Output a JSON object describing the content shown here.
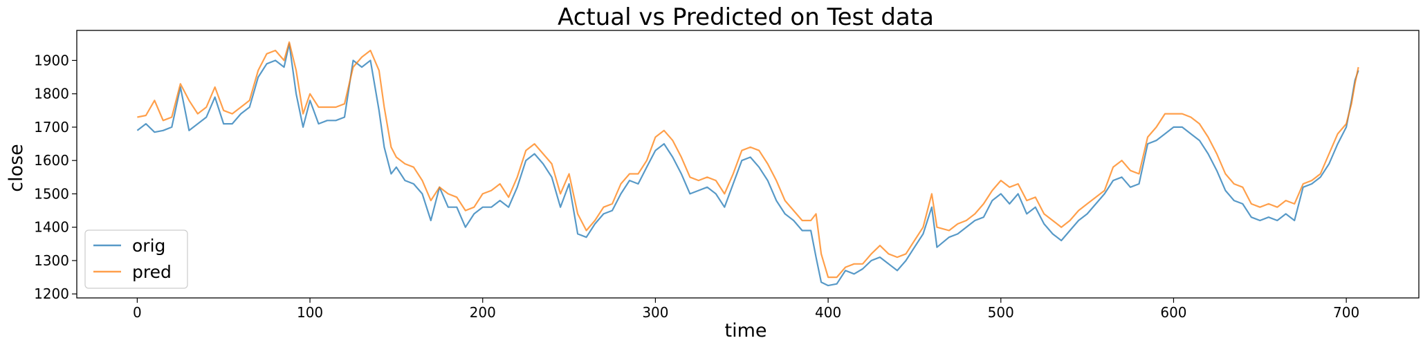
{
  "chart_data": {
    "type": "line",
    "title": "Actual vs Predicted on Test data",
    "xlabel": "time",
    "ylabel": "close",
    "xlim": [
      -35,
      742
    ],
    "ylim": [
      1188,
      1990
    ],
    "xticks": [
      0,
      100,
      200,
      300,
      400,
      500,
      600,
      700
    ],
    "yticks": [
      1200,
      1300,
      1400,
      1500,
      1600,
      1700,
      1800,
      1900
    ],
    "grid": false,
    "legend": "lower-left",
    "series": [
      {
        "name": "orig",
        "color": "#1f77b4",
        "points": [
          [
            0,
            1690
          ],
          [
            5,
            1710
          ],
          [
            10,
            1685
          ],
          [
            15,
            1690
          ],
          [
            20,
            1700
          ],
          [
            25,
            1820
          ],
          [
            30,
            1690
          ],
          [
            35,
            1710
          ],
          [
            40,
            1730
          ],
          [
            45,
            1790
          ],
          [
            50,
            1710
          ],
          [
            55,
            1710
          ],
          [
            60,
            1740
          ],
          [
            65,
            1760
          ],
          [
            70,
            1850
          ],
          [
            75,
            1890
          ],
          [
            80,
            1900
          ],
          [
            85,
            1880
          ],
          [
            88,
            1950
          ],
          [
            92,
            1800
          ],
          [
            96,
            1700
          ],
          [
            100,
            1780
          ],
          [
            105,
            1710
          ],
          [
            110,
            1720
          ],
          [
            115,
            1720
          ],
          [
            120,
            1730
          ],
          [
            125,
            1900
          ],
          [
            130,
            1880
          ],
          [
            135,
            1900
          ],
          [
            140,
            1750
          ],
          [
            143,
            1640
          ],
          [
            147,
            1560
          ],
          [
            150,
            1580
          ],
          [
            155,
            1540
          ],
          [
            160,
            1530
          ],
          [
            165,
            1500
          ],
          [
            170,
            1420
          ],
          [
            175,
            1520
          ],
          [
            180,
            1460
          ],
          [
            185,
            1460
          ],
          [
            190,
            1400
          ],
          [
            195,
            1440
          ],
          [
            200,
            1460
          ],
          [
            205,
            1460
          ],
          [
            210,
            1480
          ],
          [
            215,
            1460
          ],
          [
            220,
            1520
          ],
          [
            225,
            1600
          ],
          [
            230,
            1620
          ],
          [
            235,
            1590
          ],
          [
            240,
            1550
          ],
          [
            245,
            1460
          ],
          [
            250,
            1530
          ],
          [
            255,
            1380
          ],
          [
            260,
            1370
          ],
          [
            265,
            1410
          ],
          [
            270,
            1440
          ],
          [
            275,
            1450
          ],
          [
            280,
            1500
          ],
          [
            285,
            1540
          ],
          [
            290,
            1530
          ],
          [
            295,
            1580
          ],
          [
            300,
            1630
          ],
          [
            305,
            1650
          ],
          [
            310,
            1610
          ],
          [
            315,
            1560
          ],
          [
            320,
            1500
          ],
          [
            325,
            1510
          ],
          [
            330,
            1520
          ],
          [
            335,
            1500
          ],
          [
            340,
            1460
          ],
          [
            345,
            1530
          ],
          [
            350,
            1600
          ],
          [
            355,
            1610
          ],
          [
            360,
            1580
          ],
          [
            365,
            1540
          ],
          [
            370,
            1480
          ],
          [
            375,
            1440
          ],
          [
            380,
            1420
          ],
          [
            385,
            1390
          ],
          [
            390,
            1390
          ],
          [
            393,
            1310
          ],
          [
            396,
            1235
          ],
          [
            400,
            1225
          ],
          [
            405,
            1230
          ],
          [
            410,
            1270
          ],
          [
            415,
            1260
          ],
          [
            420,
            1275
          ],
          [
            425,
            1300
          ],
          [
            430,
            1310
          ],
          [
            435,
            1290
          ],
          [
            440,
            1270
          ],
          [
            445,
            1300
          ],
          [
            450,
            1340
          ],
          [
            455,
            1380
          ],
          [
            460,
            1460
          ],
          [
            463,
            1340
          ],
          [
            470,
            1370
          ],
          [
            475,
            1380
          ],
          [
            480,
            1400
          ],
          [
            485,
            1420
          ],
          [
            490,
            1430
          ],
          [
            495,
            1480
          ],
          [
            500,
            1500
          ],
          [
            505,
            1470
          ],
          [
            510,
            1500
          ],
          [
            515,
            1440
          ],
          [
            520,
            1460
          ],
          [
            525,
            1410
          ],
          [
            530,
            1380
          ],
          [
            535,
            1360
          ],
          [
            540,
            1390
          ],
          [
            545,
            1420
          ],
          [
            550,
            1440
          ],
          [
            555,
            1470
          ],
          [
            560,
            1500
          ],
          [
            565,
            1540
          ],
          [
            570,
            1550
          ],
          [
            575,
            1520
          ],
          [
            580,
            1530
          ],
          [
            585,
            1650
          ],
          [
            590,
            1660
          ],
          [
            595,
            1680
          ],
          [
            600,
            1700
          ],
          [
            605,
            1700
          ],
          [
            610,
            1680
          ],
          [
            615,
            1660
          ],
          [
            620,
            1620
          ],
          [
            625,
            1570
          ],
          [
            630,
            1510
          ],
          [
            635,
            1480
          ],
          [
            640,
            1470
          ],
          [
            645,
            1430
          ],
          [
            650,
            1420
          ],
          [
            655,
            1430
          ],
          [
            660,
            1420
          ],
          [
            665,
            1440
          ],
          [
            670,
            1420
          ],
          [
            675,
            1520
          ],
          [
            680,
            1530
          ],
          [
            685,
            1550
          ],
          [
            690,
            1590
          ],
          [
            695,
            1650
          ],
          [
            700,
            1700
          ],
          [
            703,
            1780
          ],
          [
            705,
            1840
          ],
          [
            707,
            1870
          ]
        ]
      },
      {
        "name": "pred",
        "color": "#ff7f0e",
        "points": [
          [
            0,
            1730
          ],
          [
            5,
            1735
          ],
          [
            10,
            1780
          ],
          [
            15,
            1720
          ],
          [
            20,
            1730
          ],
          [
            25,
            1830
          ],
          [
            30,
            1780
          ],
          [
            35,
            1740
          ],
          [
            40,
            1760
          ],
          [
            45,
            1820
          ],
          [
            50,
            1750
          ],
          [
            55,
            1740
          ],
          [
            60,
            1760
          ],
          [
            65,
            1780
          ],
          [
            70,
            1870
          ],
          [
            75,
            1920
          ],
          [
            80,
            1930
          ],
          [
            85,
            1900
          ],
          [
            88,
            1955
          ],
          [
            92,
            1870
          ],
          [
            96,
            1740
          ],
          [
            100,
            1800
          ],
          [
            105,
            1760
          ],
          [
            110,
            1760
          ],
          [
            115,
            1760
          ],
          [
            120,
            1770
          ],
          [
            125,
            1880
          ],
          [
            130,
            1910
          ],
          [
            135,
            1930
          ],
          [
            140,
            1870
          ],
          [
            143,
            1760
          ],
          [
            147,
            1640
          ],
          [
            150,
            1610
          ],
          [
            155,
            1590
          ],
          [
            160,
            1580
          ],
          [
            165,
            1540
          ],
          [
            170,
            1480
          ],
          [
            175,
            1520
          ],
          [
            180,
            1500
          ],
          [
            185,
            1490
          ],
          [
            190,
            1450
          ],
          [
            195,
            1460
          ],
          [
            200,
            1500
          ],
          [
            205,
            1510
          ],
          [
            210,
            1530
          ],
          [
            215,
            1490
          ],
          [
            220,
            1550
          ],
          [
            225,
            1630
          ],
          [
            230,
            1650
          ],
          [
            235,
            1620
          ],
          [
            240,
            1590
          ],
          [
            245,
            1500
          ],
          [
            250,
            1560
          ],
          [
            255,
            1440
          ],
          [
            260,
            1390
          ],
          [
            265,
            1420
          ],
          [
            270,
            1460
          ],
          [
            275,
            1470
          ],
          [
            280,
            1530
          ],
          [
            285,
            1560
          ],
          [
            290,
            1560
          ],
          [
            295,
            1600
          ],
          [
            300,
            1670
          ],
          [
            305,
            1690
          ],
          [
            310,
            1660
          ],
          [
            315,
            1610
          ],
          [
            320,
            1550
          ],
          [
            325,
            1540
          ],
          [
            330,
            1550
          ],
          [
            335,
            1540
          ],
          [
            340,
            1500
          ],
          [
            345,
            1560
          ],
          [
            350,
            1630
          ],
          [
            355,
            1640
          ],
          [
            360,
            1630
          ],
          [
            365,
            1590
          ],
          [
            370,
            1540
          ],
          [
            375,
            1480
          ],
          [
            380,
            1450
          ],
          [
            385,
            1420
          ],
          [
            390,
            1420
          ],
          [
            393,
            1440
          ],
          [
            396,
            1320
          ],
          [
            400,
            1250
          ],
          [
            405,
            1250
          ],
          [
            410,
            1280
          ],
          [
            415,
            1290
          ],
          [
            420,
            1290
          ],
          [
            425,
            1320
          ],
          [
            430,
            1345
          ],
          [
            435,
            1320
          ],
          [
            440,
            1310
          ],
          [
            445,
            1320
          ],
          [
            450,
            1360
          ],
          [
            455,
            1400
          ],
          [
            460,
            1500
          ],
          [
            463,
            1400
          ],
          [
            470,
            1390
          ],
          [
            475,
            1410
          ],
          [
            480,
            1420
          ],
          [
            485,
            1440
          ],
          [
            490,
            1470
          ],
          [
            495,
            1510
          ],
          [
            500,
            1540
          ],
          [
            505,
            1520
          ],
          [
            510,
            1530
          ],
          [
            515,
            1480
          ],
          [
            520,
            1490
          ],
          [
            525,
            1440
          ],
          [
            530,
            1420
          ],
          [
            535,
            1400
          ],
          [
            540,
            1420
          ],
          [
            545,
            1450
          ],
          [
            550,
            1470
          ],
          [
            555,
            1490
          ],
          [
            560,
            1510
          ],
          [
            565,
            1580
          ],
          [
            570,
            1600
          ],
          [
            575,
            1570
          ],
          [
            580,
            1560
          ],
          [
            585,
            1670
          ],
          [
            590,
            1700
          ],
          [
            595,
            1740
          ],
          [
            600,
            1740
          ],
          [
            605,
            1740
          ],
          [
            610,
            1730
          ],
          [
            615,
            1710
          ],
          [
            620,
            1670
          ],
          [
            625,
            1620
          ],
          [
            630,
            1560
          ],
          [
            635,
            1530
          ],
          [
            640,
            1520
          ],
          [
            645,
            1470
          ],
          [
            650,
            1460
          ],
          [
            655,
            1470
          ],
          [
            660,
            1460
          ],
          [
            665,
            1480
          ],
          [
            670,
            1470
          ],
          [
            675,
            1530
          ],
          [
            680,
            1540
          ],
          [
            685,
            1560
          ],
          [
            690,
            1620
          ],
          [
            695,
            1680
          ],
          [
            700,
            1710
          ],
          [
            703,
            1770
          ],
          [
            705,
            1830
          ],
          [
            707,
            1880
          ]
        ]
      }
    ]
  }
}
